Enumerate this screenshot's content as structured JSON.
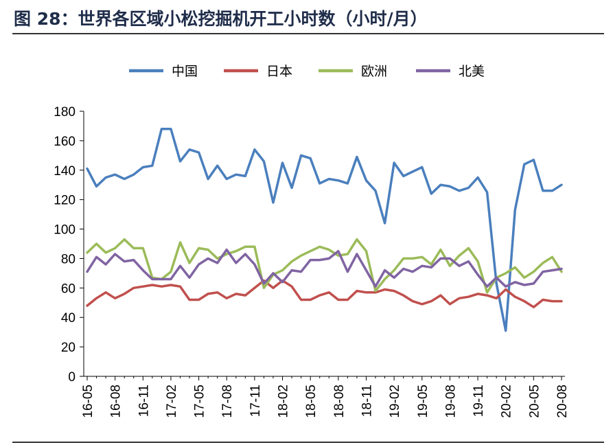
{
  "title": "图 28：世界各区域小松挖掘机开工小时数（小时/月）",
  "chart_data": {
    "type": "line",
    "title": "图 28：世界各区域小松挖掘机开工小时数（小时/月）",
    "xlabel": "",
    "ylabel": "",
    "ylim": [
      0,
      180
    ],
    "yticks": [
      0,
      20,
      40,
      60,
      80,
      100,
      120,
      140,
      160,
      180
    ],
    "x": [
      "16-05",
      "16-06",
      "16-07",
      "16-08",
      "16-09",
      "16-10",
      "16-11",
      "16-12",
      "17-01",
      "17-02",
      "17-03",
      "17-04",
      "17-05",
      "17-06",
      "17-07",
      "17-08",
      "17-09",
      "17-10",
      "17-11",
      "17-12",
      "18-01",
      "18-02",
      "18-03",
      "18-04",
      "18-05",
      "18-06",
      "18-07",
      "18-08",
      "18-09",
      "18-10",
      "18-11",
      "18-12",
      "19-01",
      "19-02",
      "19-03",
      "19-04",
      "19-05",
      "19-06",
      "19-07",
      "19-08",
      "19-09",
      "19-10",
      "19-11",
      "19-12",
      "20-01",
      "20-02",
      "20-03",
      "20-04",
      "20-05",
      "20-06",
      "20-07",
      "20-08"
    ],
    "xtick_labels": [
      "16-05",
      "16-08",
      "16-11",
      "17-02",
      "17-05",
      "17-08",
      "17-11",
      "18-02",
      "18-05",
      "18-08",
      "18-11",
      "19-02",
      "19-05",
      "19-08",
      "19-11",
      "20-02",
      "20-05",
      "20-08"
    ],
    "legend_position": "top",
    "grid": false,
    "series": [
      {
        "name": "中国",
        "color": "#4a7fbd",
        "values": [
          141,
          129,
          135,
          137,
          134,
          137,
          142,
          143,
          168,
          168,
          146,
          154,
          152,
          134,
          143,
          134,
          137,
          136,
          154,
          146,
          118,
          145,
          128,
          150,
          148,
          131,
          134,
          133,
          131,
          149,
          133,
          126,
          104,
          145,
          136,
          139,
          142,
          124,
          130,
          129,
          126,
          128,
          135,
          125,
          63,
          31,
          113,
          144,
          147,
          126,
          126,
          130
        ]
      },
      {
        "name": "日本",
        "color": "#c0504d",
        "values": [
          48,
          53,
          57,
          53,
          56,
          60,
          61,
          62,
          61,
          62,
          61,
          52,
          52,
          56,
          57,
          53,
          56,
          55,
          60,
          65,
          60,
          65,
          61,
          52,
          52,
          55,
          57,
          52,
          52,
          58,
          57,
          57,
          59,
          58,
          55,
          51,
          49,
          51,
          55,
          49,
          53,
          54,
          56,
          55,
          53,
          59,
          54,
          51,
          47,
          52,
          51,
          51
        ]
      },
      {
        "name": "欧洲",
        "color": "#9bbb59",
        "values": [
          84,
          90,
          84,
          87,
          93,
          87,
          87,
          67,
          66,
          71,
          91,
          77,
          87,
          86,
          80,
          83,
          85,
          88,
          88,
          60,
          69,
          72,
          78,
          82,
          85,
          88,
          86,
          82,
          83,
          93,
          85,
          58,
          66,
          72,
          80,
          80,
          81,
          76,
          86,
          75,
          82,
          87,
          78,
          57,
          67,
          70,
          74,
          67,
          71,
          77,
          81,
          71
        ]
      },
      {
        "name": "北美",
        "color": "#8064a2",
        "values": [
          71,
          81,
          76,
          83,
          78,
          79,
          72,
          66,
          66,
          66,
          75,
          67,
          76,
          80,
          77,
          86,
          77,
          83,
          76,
          63,
          70,
          64,
          72,
          71,
          79,
          79,
          80,
          85,
          71,
          83,
          72,
          61,
          72,
          67,
          73,
          71,
          75,
          74,
          80,
          80,
          75,
          78,
          69,
          61,
          67,
          61,
          64,
          62,
          63,
          71,
          72,
          73
        ]
      }
    ]
  }
}
